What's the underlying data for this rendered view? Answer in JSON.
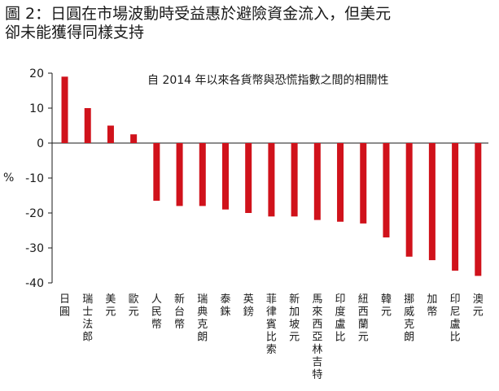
{
  "chart_data": {
    "type": "bar",
    "title": "圖 2：日圓在市場波動時受益惠於避險資金流入，但美元\n卻未能獲得同樣支持",
    "ylabel": "%",
    "annotation": "自 2014 年以來各貨幣與恐慌指數之間的相關性",
    "ylim": [
      -40,
      20
    ],
    "yticks": [
      20,
      10,
      0,
      -10,
      -20,
      -30,
      -40
    ],
    "grid": false,
    "bar_color": "#d0121b",
    "categories": [
      "日圓",
      "瑞士法郎",
      "美元",
      "歐元",
      "人民幣",
      "新台幣",
      "瑞典克朗",
      "泰銖",
      "英鎊",
      "菲律賓比索",
      "新加坡元",
      "馬來西亞林吉特",
      "印度盧比",
      "紐西蘭元",
      "韓元",
      "挪威克朗",
      "加幣",
      "印尼盧比",
      "澳元"
    ],
    "values": [
      19,
      10,
      5,
      2.5,
      -16.5,
      -18,
      -18,
      -19,
      -20,
      -21,
      -21,
      -22,
      -22.5,
      -23,
      -27,
      -32.5,
      -33.5,
      -36.5,
      -38
    ]
  }
}
